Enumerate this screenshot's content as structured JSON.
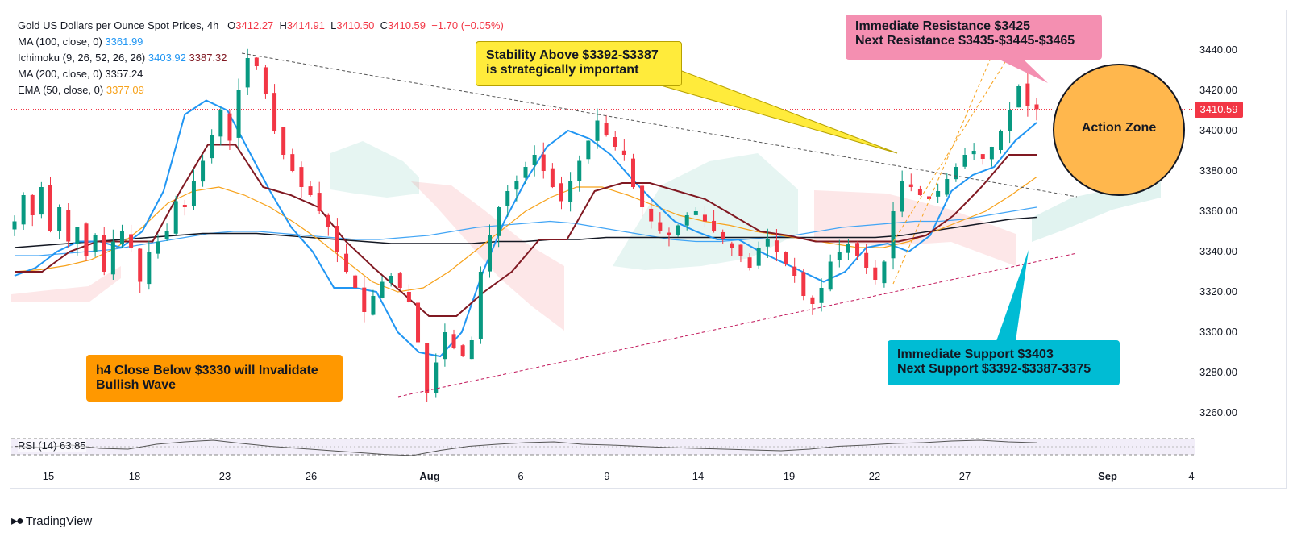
{
  "header": {
    "title": "Gold US Dollars per Ounce Spot Prices",
    "interval": "4h",
    "open_label": "O",
    "open": "3412.27",
    "high_label": "H",
    "high": "3414.91",
    "low_label": "L",
    "low": "3410.50",
    "close_label": "C",
    "close": "3410.59",
    "change": "−1.70 (−0.05%)"
  },
  "indicators": [
    {
      "label": "MA (100, close, 0)",
      "value": "3361.99",
      "color": "#2962ff"
    },
    {
      "label": "Ichimoku (9, 26, 52, 26, 26)",
      "value": "3403.92",
      "value2": "3387.32",
      "color": "#2196f3",
      "color2": "#801922"
    },
    {
      "label": "MA (200, close, 0)",
      "value": "3357.24",
      "color": "#131722"
    },
    {
      "label": "EMA (50, close, 0)",
      "value": "3377.09",
      "color": "#f7a21b"
    }
  ],
  "rsi": {
    "label": "RSI (14)",
    "value": "63.85",
    "color": "#7e57c2"
  },
  "price_tag": "3410.59",
  "annotations": {
    "resistance_line1": "Immediate Resistance $3425",
    "resistance_line2": "Next Resistance $3435-$3445-$3465",
    "stability_line1": "Stability Above $3392-$3387",
    "stability_line2": "is strategically important",
    "action_zone": "Action Zone",
    "support_line1": "Immediate Support $3403",
    "support_line2": "Next Support $3392-$3387-3375",
    "invalidate_line1": "h4 Close Below $3330 will Invalidate",
    "invalidate_line2": "Bullish Wave"
  },
  "brand": "TradingView",
  "colors": {
    "up": "#089981",
    "down": "#f23645",
    "resistance_box": "#f48fb1",
    "stability_box": "#ffeb3b",
    "action_zone": "#ffb74d",
    "support_box": "#00bcd4",
    "invalidate_box": "#ff9800"
  },
  "chart_data": {
    "type": "candlestick",
    "title": "Gold US Dollars per Ounce Spot Prices",
    "interval": "4h",
    "y_axis": {
      "ticks": [
        3260,
        3280,
        3300,
        3320,
        3340,
        3360,
        3380,
        3400,
        3420,
        3440
      ],
      "ylim": [
        3250,
        3450
      ],
      "side": "right"
    },
    "x_axis": {
      "ticks": [
        "15",
        "18",
        "23",
        "26",
        "Aug",
        "6",
        "9",
        "14",
        "19",
        "22",
        "27",
        "Sep",
        "4"
      ]
    },
    "close_path": [
      3355,
      3368,
      3358,
      3372,
      3350,
      3362,
      3345,
      3352,
      3338,
      3348,
      3330,
      3345,
      3350,
      3342,
      3325,
      3340,
      3345,
      3350,
      3365,
      3362,
      3375,
      3385,
      3398,
      3410,
      3395,
      3420,
      3436,
      3432,
      3418,
      3400,
      3388,
      3380,
      3372,
      3368,
      3360,
      3352,
      3340,
      3330,
      3322,
      3310,
      3318,
      3325,
      3328,
      3322,
      3315,
      3295,
      3270,
      3285,
      3300,
      3292,
      3288,
      3296,
      3330,
      3348,
      3362,
      3370,
      3375,
      3382,
      3388,
      3380,
      3372,
      3365,
      3375,
      3385,
      3395,
      3405,
      3398,
      3392,
      3388,
      3372,
      3362,
      3355,
      3350,
      3348,
      3353,
      3358,
      3360,
      3355,
      3350,
      3346,
      3342,
      3338,
      3332,
      3342,
      3346,
      3340,
      3334,
      3328,
      3318,
      3314,
      3322,
      3335,
      3340,
      3344,
      3338,
      3332,
      3326,
      3335,
      3360,
      3375,
      3372,
      3368,
      3366,
      3370,
      3376,
      3382,
      3388,
      3390,
      3386,
      3392,
      3400,
      3410,
      3422,
      3412,
      3410.59
    ],
    "ma100": [
      3338,
      3338,
      3339,
      3340,
      3341,
      3343,
      3345,
      3347,
      3349,
      3350,
      3350,
      3349,
      3348,
      3347,
      3346,
      3346,
      3347,
      3348,
      3350,
      3352,
      3353,
      3354,
      3355,
      3354,
      3352,
      3350,
      3348,
      3346,
      3345,
      3345,
      3346,
      3347,
      3348,
      3350,
      3352,
      3353,
      3354,
      3355,
      3355,
      3356,
      3358,
      3360,
      3362
    ],
    "ema50": [
      3330,
      3331,
      3333,
      3336,
      3342,
      3352,
      3364,
      3370,
      3372,
      3368,
      3362,
      3354,
      3345,
      3335,
      3325,
      3320,
      3322,
      3330,
      3340,
      3350,
      3360,
      3367,
      3372,
      3372,
      3368,
      3363,
      3358,
      3355,
      3353,
      3350,
      3348,
      3346,
      3344,
      3342,
      3342,
      3345,
      3350,
      3355,
      3360,
      3368,
      3377
    ],
    "ma200": [
      3342,
      3343,
      3344,
      3345,
      3346,
      3347,
      3348,
      3349,
      3349,
      3349,
      3348,
      3347,
      3346,
      3345,
      3344,
      3344,
      3344,
      3344,
      3345,
      3345,
      3346,
      3346,
      3347,
      3347,
      3347,
      3347,
      3347,
      3347,
      3347,
      3347,
      3347,
      3347,
      3347,
      3348,
      3350,
      3352,
      3354,
      3356,
      3357
    ],
    "tenkan": [
      3328,
      3332,
      3340,
      3345,
      3345,
      3342,
      3350,
      3370,
      3408,
      3415,
      3410,
      3390,
      3370,
      3352,
      3340,
      3322,
      3322,
      3320,
      3300,
      3290,
      3288,
      3300,
      3330,
      3355,
      3375,
      3392,
      3400,
      3396,
      3388,
      3376,
      3365,
      3355,
      3350,
      3346,
      3346,
      3340,
      3335,
      3330,
      3325,
      3330,
      3342,
      3344,
      3340,
      3348,
      3370,
      3378,
      3382,
      3395,
      3404
    ],
    "kijun": [
      3330,
      3330,
      3340,
      3345,
      3345,
      3345,
      3370,
      3393,
      3393,
      3372,
      3368,
      3362,
      3345,
      3332,
      3320,
      3308,
      3308,
      3320,
      3330,
      3346,
      3346,
      3370,
      3374,
      3374,
      3370,
      3366,
      3358,
      3350,
      3348,
      3345,
      3345,
      3345,
      3345,
      3348,
      3358,
      3372,
      3388,
      3388
    ],
    "rsi": [
      55,
      52,
      58,
      50,
      48,
      60,
      66,
      70,
      62,
      55,
      50,
      45,
      40,
      35,
      32,
      45,
      55,
      60,
      64,
      66,
      60,
      58,
      55,
      52,
      50,
      48,
      46,
      44,
      48,
      55,
      58,
      62,
      64,
      68,
      70,
      66,
      63.85
    ],
    "annotations": [
      {
        "text": "Immediate Resistance $3425 / Next Resistance $3435-$3445-$3465"
      },
      {
        "text": "Stability Above $3392-$3387 is strategically important"
      },
      {
        "text": "Action Zone"
      },
      {
        "text": "Immediate Support $3403 / Next Support $3392-$3387-3375"
      },
      {
        "text": "h4 Close Below $3330 will Invalidate Bullish Wave"
      }
    ],
    "grid": false
  }
}
